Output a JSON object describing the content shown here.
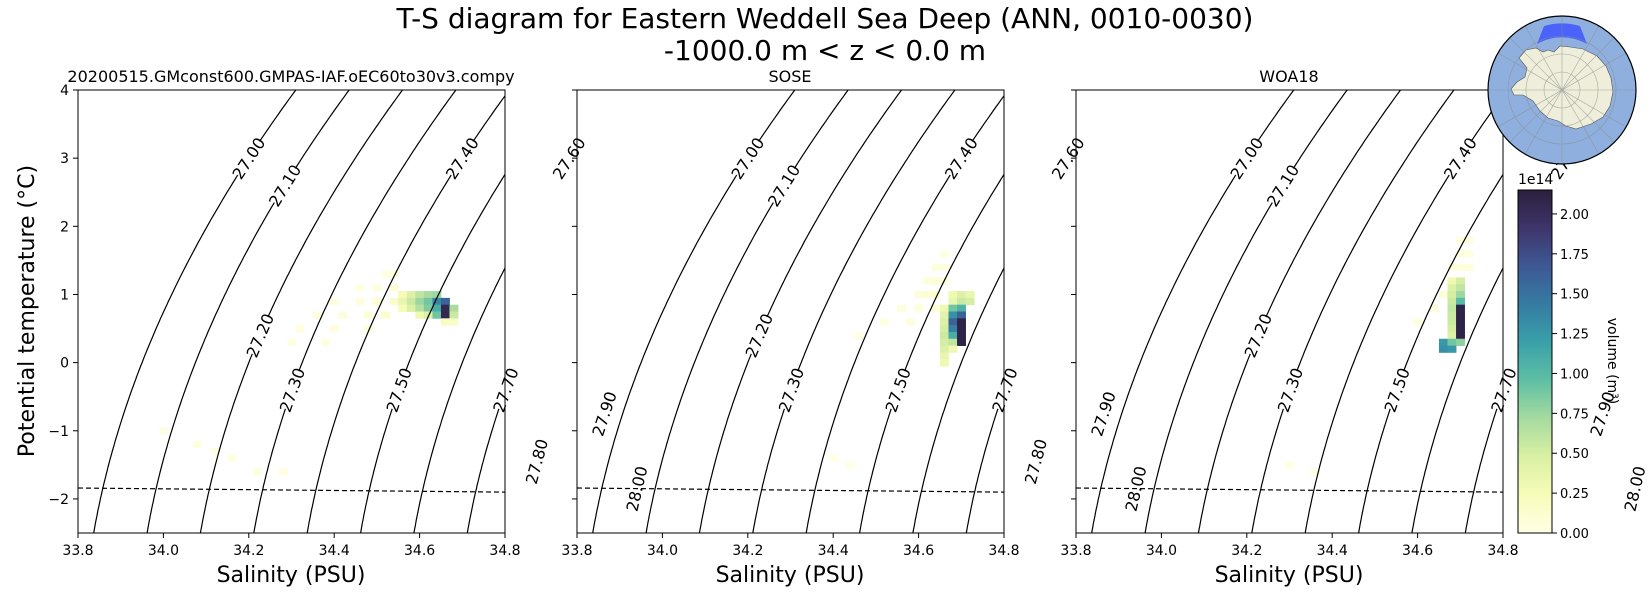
{
  "figure": {
    "title_line1": "T-S diagram for Eastern Weddell Sea Deep (ANN, 0010-0030)",
    "title_line2": "-1000.0 m < z < 0.0 m"
  },
  "chart_data": [
    {
      "type": "heatmap",
      "title": "20200515.GMconst600.GMPAS-IAF.oEC60to30v3.compy",
      "xlabel": "Salinity (PSU)",
      "ylabel": "Potential temperature ($^\\circ$C)",
      "xlim": [
        33.8,
        34.8
      ],
      "ylim": [
        -2.5,
        4
      ],
      "xticks": [
        "33.8",
        "34.0",
        "34.2",
        "34.4",
        "34.6",
        "34.8"
      ],
      "yticks": [
        "−2",
        "−1",
        "0",
        "1",
        "2",
        "3",
        "4"
      ],
      "freezing_line": [
        [
          33.8,
          -1.84
        ],
        [
          34.8,
          -1.9
        ]
      ],
      "cells": [
        [
          34.52,
          1.3,
          0.02
        ],
        [
          34.54,
          1.3,
          0.03
        ],
        [
          34.46,
          1.1,
          0.03
        ],
        [
          34.5,
          1.1,
          0.05
        ],
        [
          34.54,
          1.1,
          0.07
        ],
        [
          34.4,
          0.9,
          0.03
        ],
        [
          34.46,
          0.9,
          0.05
        ],
        [
          34.5,
          0.9,
          0.1
        ],
        [
          34.54,
          0.9,
          0.14
        ],
        [
          34.36,
          0.7,
          0.03
        ],
        [
          34.42,
          0.7,
          0.05
        ],
        [
          34.48,
          0.7,
          0.08
        ],
        [
          34.52,
          0.7,
          0.12
        ],
        [
          34.32,
          0.5,
          0.02
        ],
        [
          34.4,
          0.5,
          0.04
        ],
        [
          34.48,
          0.5,
          0.05
        ],
        [
          34.3,
          0.3,
          0.02
        ],
        [
          34.38,
          0.3,
          0.02
        ],
        [
          34.56,
          1.0,
          0.25
        ],
        [
          34.58,
          1.0,
          0.45
        ],
        [
          34.6,
          1.0,
          0.6
        ],
        [
          34.62,
          1.0,
          0.7
        ],
        [
          34.64,
          1.0,
          0.75
        ],
        [
          34.56,
          0.9,
          0.35
        ],
        [
          34.58,
          0.9,
          0.55
        ],
        [
          34.6,
          0.9,
          0.75
        ],
        [
          34.62,
          0.9,
          0.9
        ],
        [
          34.64,
          0.9,
          1.35
        ],
        [
          34.66,
          0.9,
          1.6
        ],
        [
          34.56,
          0.8,
          0.25
        ],
        [
          34.58,
          0.8,
          0.45
        ],
        [
          34.6,
          0.8,
          0.65
        ],
        [
          34.62,
          0.8,
          0.85
        ],
        [
          34.64,
          0.8,
          1.1
        ],
        [
          34.66,
          0.8,
          2.05
        ],
        [
          34.68,
          0.8,
          0.7
        ],
        [
          34.6,
          0.7,
          0.3
        ],
        [
          34.62,
          0.7,
          0.45
        ],
        [
          34.64,
          0.7,
          0.9
        ],
        [
          34.66,
          0.7,
          2.05
        ],
        [
          34.68,
          0.7,
          0.55
        ],
        [
          34.66,
          0.6,
          0.2
        ],
        [
          34.68,
          0.6,
          0.15
        ],
        [
          34.0,
          -1.0,
          0.015
        ],
        [
          34.08,
          -1.2,
          0.02
        ],
        [
          34.16,
          -1.4,
          0.02
        ],
        [
          34.22,
          -1.6,
          0.025
        ],
        [
          34.28,
          -1.6,
          0.015
        ],
        [
          34.12,
          -1.3,
          0.01
        ]
      ]
    },
    {
      "type": "heatmap",
      "title": "SOSE",
      "xlabel": "Salinity (PSU)",
      "xlim": [
        33.8,
        34.8
      ],
      "ylim": [
        -2.5,
        4
      ],
      "xticks": [
        "33.8",
        "34.0",
        "34.2",
        "34.4",
        "34.6",
        "34.8"
      ],
      "freezing_line": [
        [
          33.8,
          -1.84
        ],
        [
          34.8,
          -1.9
        ]
      ],
      "cells": [
        [
          34.66,
          1.6,
          0.02
        ],
        [
          34.64,
          1.4,
          0.04
        ],
        [
          34.66,
          1.4,
          0.03
        ],
        [
          34.62,
          1.2,
          0.06
        ],
        [
          34.64,
          1.2,
          0.08
        ],
        [
          34.66,
          1.2,
          0.05
        ],
        [
          34.6,
          1.0,
          0.05
        ],
        [
          34.62,
          1.0,
          0.1
        ],
        [
          34.64,
          1.0,
          0.12
        ],
        [
          34.56,
          0.8,
          0.04
        ],
        [
          34.6,
          0.8,
          0.06
        ],
        [
          34.64,
          0.8,
          0.08
        ],
        [
          34.52,
          0.6,
          0.03
        ],
        [
          34.58,
          0.6,
          0.04
        ],
        [
          34.46,
          0.4,
          0.02
        ],
        [
          34.68,
          1.0,
          0.3
        ],
        [
          34.7,
          1.0,
          0.45
        ],
        [
          34.72,
          1.0,
          0.35
        ],
        [
          34.68,
          0.9,
          0.35
        ],
        [
          34.7,
          0.9,
          0.55
        ],
        [
          34.72,
          0.9,
          0.5
        ],
        [
          34.66,
          0.8,
          0.3
        ],
        [
          34.68,
          0.8,
          0.9
        ],
        [
          34.7,
          0.8,
          1.05
        ],
        [
          34.66,
          0.7,
          0.4
        ],
        [
          34.68,
          0.7,
          1.3
        ],
        [
          34.7,
          0.7,
          1.6
        ],
        [
          34.66,
          0.6,
          0.45
        ],
        [
          34.68,
          0.6,
          1.6
        ],
        [
          34.7,
          0.6,
          2.1
        ],
        [
          34.66,
          0.5,
          0.5
        ],
        [
          34.68,
          0.5,
          1.4
        ],
        [
          34.7,
          0.5,
          2.1
        ],
        [
          34.66,
          0.4,
          0.55
        ],
        [
          34.68,
          0.4,
          1.1
        ],
        [
          34.7,
          0.4,
          2.1
        ],
        [
          34.66,
          0.3,
          0.5
        ],
        [
          34.68,
          0.3,
          0.6
        ],
        [
          34.7,
          0.3,
          2.1
        ],
        [
          34.66,
          0.2,
          0.45
        ],
        [
          34.68,
          0.2,
          0.3
        ],
        [
          34.66,
          0.1,
          0.35
        ],
        [
          34.66,
          0.0,
          0.3
        ],
        [
          34.4,
          -1.4,
          0.01
        ],
        [
          34.44,
          -1.5,
          0.012
        ]
      ]
    },
    {
      "type": "heatmap",
      "title": "WOA18",
      "xlabel": "Salinity (PSU)",
      "xlim": [
        33.8,
        34.8
      ],
      "ylim": [
        -2.5,
        4
      ],
      "xticks": [
        "33.8",
        "34.0",
        "34.2",
        "34.4",
        "34.6",
        "34.8"
      ],
      "freezing_line": [
        [
          33.8,
          -1.84
        ],
        [
          34.8,
          -1.9
        ]
      ],
      "cells": [
        [
          34.7,
          1.8,
          0.02
        ],
        [
          34.72,
          1.8,
          0.02
        ],
        [
          34.7,
          1.6,
          0.03
        ],
        [
          34.72,
          1.6,
          0.03
        ],
        [
          34.68,
          1.4,
          0.05
        ],
        [
          34.7,
          1.4,
          0.06
        ],
        [
          34.72,
          1.4,
          0.04
        ],
        [
          34.68,
          1.2,
          0.08
        ],
        [
          34.7,
          1.2,
          0.1
        ],
        [
          34.66,
          1.0,
          0.06
        ],
        [
          34.64,
          0.8,
          0.04
        ],
        [
          34.6,
          0.6,
          0.03
        ],
        [
          34.68,
          1.2,
          0.3
        ],
        [
          34.7,
          1.2,
          0.5
        ],
        [
          34.68,
          1.1,
          0.45
        ],
        [
          34.7,
          1.1,
          0.6
        ],
        [
          34.68,
          1.0,
          0.5
        ],
        [
          34.7,
          1.0,
          0.75
        ],
        [
          34.68,
          0.9,
          0.55
        ],
        [
          34.7,
          0.9,
          1.0
        ],
        [
          34.68,
          0.8,
          0.6
        ],
        [
          34.7,
          0.8,
          2.1
        ],
        [
          34.68,
          0.7,
          0.55
        ],
        [
          34.7,
          0.7,
          2.1
        ],
        [
          34.68,
          0.6,
          0.55
        ],
        [
          34.7,
          0.6,
          2.1
        ],
        [
          34.68,
          0.5,
          0.5
        ],
        [
          34.7,
          0.5,
          2.1
        ],
        [
          34.68,
          0.4,
          0.45
        ],
        [
          34.7,
          0.4,
          2.1
        ],
        [
          34.66,
          0.3,
          1.25
        ],
        [
          34.68,
          0.3,
          0.9
        ],
        [
          34.7,
          0.3,
          0.8
        ],
        [
          34.66,
          0.2,
          1.3
        ],
        [
          34.68,
          0.2,
          1.25
        ],
        [
          34.3,
          -1.5,
          0.01
        ],
        [
          34.36,
          -1.6,
          0.012
        ]
      ]
    }
  ],
  "density_contours": [
    {
      "sigma": 27.0,
      "label": "27.00",
      "lpos": [
        33.9,
        3.0
      ]
    },
    {
      "sigma": 27.1,
      "label": "27.10",
      "lpos": [
        33.96,
        2.6
      ]
    },
    {
      "sigma": 27.2,
      "label": "27.20",
      "lpos": [
        33.88,
        0.4
      ]
    },
    {
      "sigma": 27.3,
      "label": "27.30",
      "lpos": [
        33.97,
        -0.4
      ]
    },
    {
      "sigma": 27.4,
      "label": "27.40",
      "lpos": [
        34.41,
        3.0
      ]
    },
    {
      "sigma": 27.5,
      "label": "27.50",
      "lpos": [
        34.22,
        -0.4
      ]
    },
    {
      "sigma": 27.6,
      "label": "27.60",
      "lpos": [
        34.64,
        3.0
      ]
    },
    {
      "sigma": 27.7,
      "label": "27.70",
      "lpos": [
        34.47,
        -0.4
      ]
    },
    {
      "sigma": 27.8,
      "label": "27.80",
      "lpos": [
        34.56,
        -1.45
      ]
    },
    {
      "sigma": 27.9,
      "label": "27.90",
      "lpos": [
        34.72,
        -0.75
      ]
    },
    {
      "sigma": 28.0,
      "label": "28.00",
      "lpos": [
        34.77,
        -1.85
      ]
    }
  ],
  "colorbar": {
    "label": "volume (m$^3$)",
    "exponent": "1e14",
    "vmin": 0,
    "vmax": 2.15,
    "ticks": [
      "0.00",
      "0.25",
      "0.50",
      "0.75",
      "1.00",
      "1.25",
      "1.50",
      "1.75",
      "2.00"
    ],
    "colors": [
      "#ffffe5",
      "#f7fcb9",
      "#d9f0a3",
      "#a6dba0",
      "#5fbfa4",
      "#3aa0a9",
      "#357ba2",
      "#3e5894",
      "#3e356b",
      "#2b1f3d"
    ]
  },
  "inset_map": {
    "ocean_color": "#8fb0de",
    "land_color": "#eeeedb",
    "region_color": "#3f56ff"
  }
}
